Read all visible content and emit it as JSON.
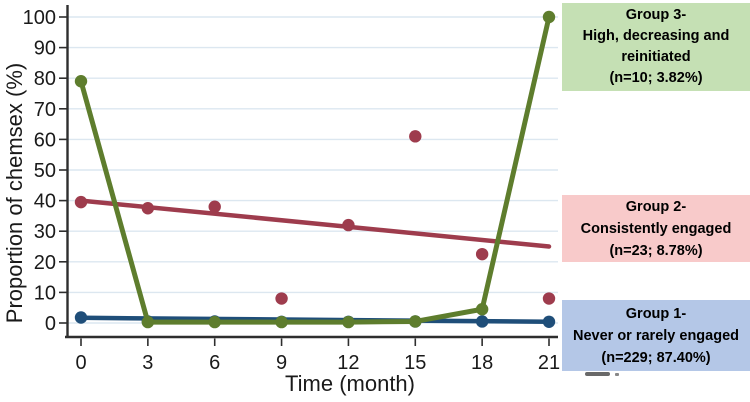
{
  "chart_data": {
    "type": "scatter",
    "title": "",
    "xlabel": "Time (month)",
    "ylabel": "Proportion of chemsex (%)",
    "x": [
      0,
      3,
      6,
      9,
      12,
      15,
      18,
      21
    ],
    "xlim": [
      0,
      21
    ],
    "ylim": [
      0,
      100
    ],
    "y_ticks": [
      0,
      10,
      20,
      30,
      40,
      50,
      60,
      70,
      80,
      90,
      100
    ],
    "grid": true,
    "legend_position": "right",
    "series": [
      {
        "name": "Group 2 - Consistently engaged",
        "color": "#9e3c4d",
        "observed": [
          39.5,
          37.5,
          38,
          8,
          32,
          61,
          22.5,
          8
        ],
        "line": {
          "kind": "linear",
          "points": [
            [
              0,
              40
            ],
            [
              21,
              25
            ]
          ]
        }
      },
      {
        "name": "Group 1 - Never or rarely engaged",
        "color": "#1f4e79",
        "observed": [
          1.8,
          0.5,
          0.5,
          0.4,
          0.4,
          0.5,
          0.5,
          0.4
        ],
        "line": {
          "kind": "linear",
          "points": [
            [
              0,
              1.7
            ],
            [
              21,
              0.4
            ]
          ]
        }
      },
      {
        "name": "Group 3 - High, decreasing and reinitiated",
        "color": "#5e7d2d",
        "observed": [
          79,
          0.3,
          0.3,
          0.3,
          0.3,
          0.5,
          4.5,
          100
        ],
        "line": {
          "kind": "connect"
        }
      }
    ]
  },
  "legend": {
    "groups": [
      {
        "id": "group3",
        "bg": "#c5e0b4",
        "lines": [
          "Group 3-",
          "High, decreasing and",
          "reinitiated",
          "(n=10; 3.82%)"
        ]
      },
      {
        "id": "group2",
        "bg": "#f8caca",
        "lines": [
          "Group 2-",
          "Consistently engaged",
          "(n=23; 8.78%)"
        ]
      },
      {
        "id": "group1",
        "bg": "#b4c7e7",
        "lines": [
          "Group 1-",
          "Never or rarely engaged",
          "(n=229; 87.40%)"
        ]
      }
    ]
  },
  "colors": {
    "grid": "#dce7f0",
    "axis": "#2e2e2e",
    "tick_text": "#1a1a1a"
  }
}
